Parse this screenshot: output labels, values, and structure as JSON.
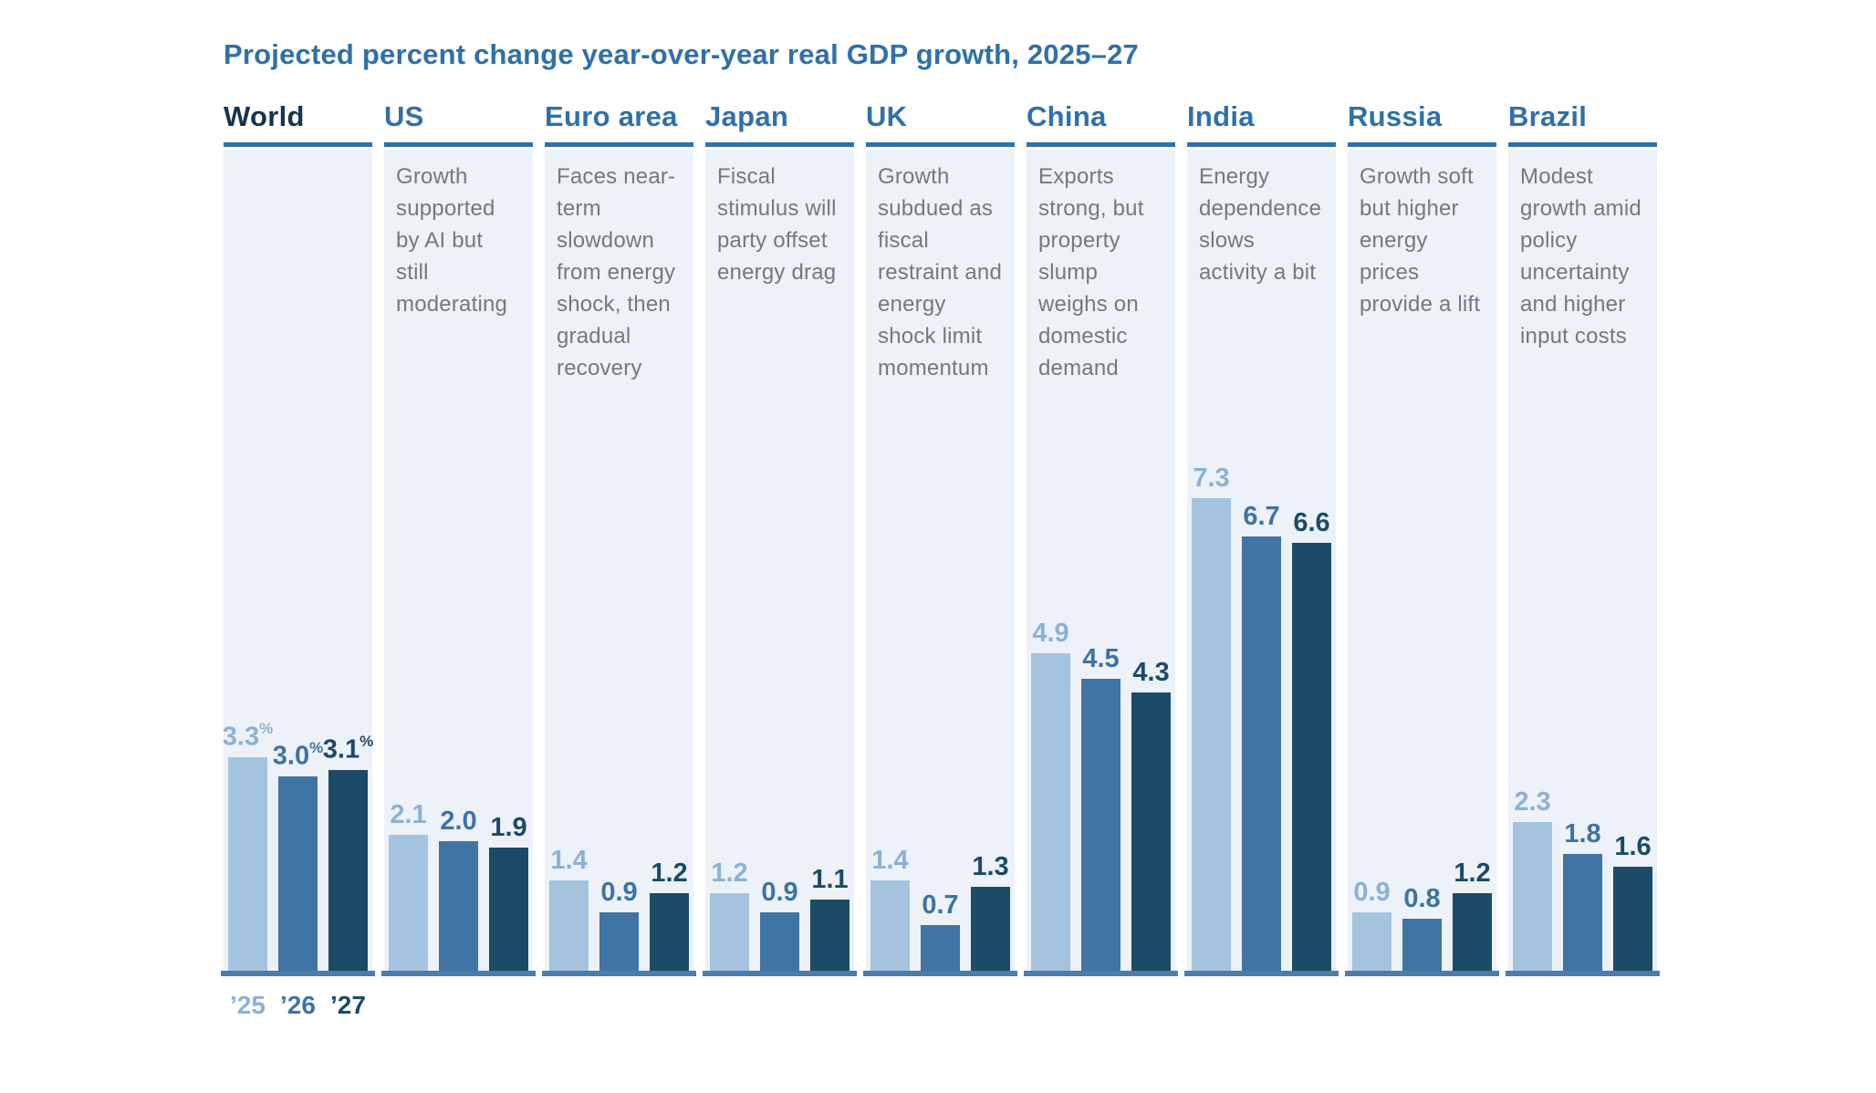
{
  "title": "Projected percent change year-over-year real GDP growth, 2025–27",
  "footer_years": [
    "’25",
    "’26",
    "’27"
  ],
  "colors": {
    "title": "#2F70A9",
    "header_default": "#2F70A9",
    "header_world": "#17344E",
    "rule": "#2F70A9",
    "card_bg": "#EDF1F8",
    "baseline": "#4A7CAC",
    "description": "#787878",
    "bar_2025": "#A4C3DE",
    "bar_2026": "#4074A4",
    "bar_2027": "#1C4B67",
    "label_2025": "#8AB2D6",
    "label_2026": "#3E73A4",
    "label_2027": "#1B4A68"
  },
  "chart_data": {
    "type": "bar",
    "title": "Projected percent change year-over-year real GDP growth, 2025–27",
    "unit": "percent",
    "categories": [
      "2025",
      "2026",
      "2027"
    ],
    "value_suffix": "%",
    "ylim": [
      0,
      7.5
    ],
    "legend_position": "below-first-panel",
    "grid": false,
    "panels": [
      {
        "region": "World",
        "description": "",
        "values": [
          3.3,
          3.0,
          3.1
        ],
        "labels": [
          "3.3",
          "3.0",
          "3.1"
        ],
        "percent_labels": true,
        "show_year_axis": true
      },
      {
        "region": "US",
        "description": "Growth supported by AI but still moderating",
        "values": [
          2.1,
          2.0,
          1.9
        ],
        "labels": [
          "2.1",
          "2.0",
          "1.9"
        ]
      },
      {
        "region": "Euro area",
        "description": "Faces near-term slowdown from energy shock, then gradual recovery",
        "values": [
          1.4,
          0.9,
          1.2
        ],
        "labels": [
          "1.4",
          "0.9",
          "1.2"
        ]
      },
      {
        "region": "Japan",
        "description": "Fiscal stimulus will party offset energy drag",
        "values": [
          1.2,
          0.9,
          1.1
        ],
        "labels": [
          "1.2",
          "0.9",
          "1.1"
        ]
      },
      {
        "region": "UK",
        "description": "Growth subdued as fiscal restraint and energy shock limit momentum",
        "values": [
          1.4,
          0.7,
          1.3
        ],
        "labels": [
          "1.4",
          "0.7",
          "1.3"
        ]
      },
      {
        "region": "China",
        "description": "Exports strong, but property slump weighs on domestic demand",
        "values": [
          4.9,
          4.5,
          4.3
        ],
        "labels": [
          "4.9",
          "4.5",
          "4.3"
        ]
      },
      {
        "region": "India",
        "description": "Energy dependence slows activity a bit",
        "values": [
          7.3,
          6.7,
          6.6
        ],
        "labels": [
          "7.3",
          "6.7",
          "6.6"
        ]
      },
      {
        "region": "Russia",
        "description": "Growth soft but higher energy prices provide a lift",
        "values": [
          0.9,
          0.8,
          1.2
        ],
        "labels": [
          "0.9",
          "0.8",
          "1.2"
        ]
      },
      {
        "region": "Brazil",
        "description": "Modest growth amid policy uncertainty and higher input costs",
        "values": [
          2.3,
          1.8,
          1.6
        ],
        "labels": [
          "2.3",
          "1.8",
          "1.6"
        ]
      }
    ]
  }
}
